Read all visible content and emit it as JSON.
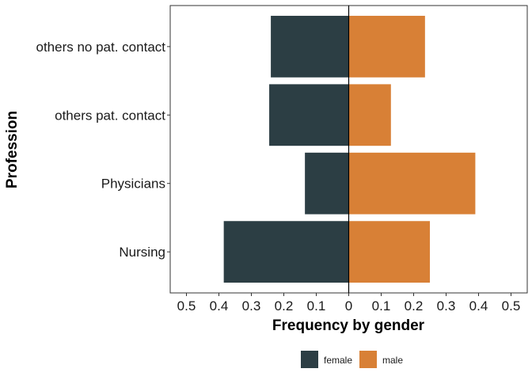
{
  "chart_data": {
    "type": "bar",
    "orientation": "horizontal-diverging",
    "categories": [
      "Nursing",
      "Physicians",
      "others pat. contact",
      "others no pat. contact"
    ],
    "series": [
      {
        "name": "female",
        "values": [
          0.385,
          0.135,
          0.245,
          0.24
        ],
        "color": "#2c3e44",
        "direction": "left"
      },
      {
        "name": "male",
        "values": [
          0.25,
          0.39,
          0.13,
          0.235
        ],
        "color": "#d88036",
        "direction": "right"
      }
    ],
    "xlabel": "Frequency by gender",
    "ylabel": "Profession",
    "xlim": [
      -0.55,
      0.55
    ],
    "x_ticks": [
      -0.5,
      -0.4,
      -0.3,
      -0.2,
      -0.1,
      0,
      0.1,
      0.2,
      0.3,
      0.4,
      0.5
    ],
    "x_tick_labels": [
      "0.5",
      "0.4",
      "0.3",
      "0.2",
      "0.1",
      "0",
      "0.1",
      "0.2",
      "0.3",
      "0.4",
      "0.5"
    ],
    "grid": false,
    "legend_position": "bottom",
    "legend": [
      {
        "label": "female",
        "color": "#2c3e44"
      },
      {
        "label": "male",
        "color": "#d88036"
      }
    ]
  }
}
